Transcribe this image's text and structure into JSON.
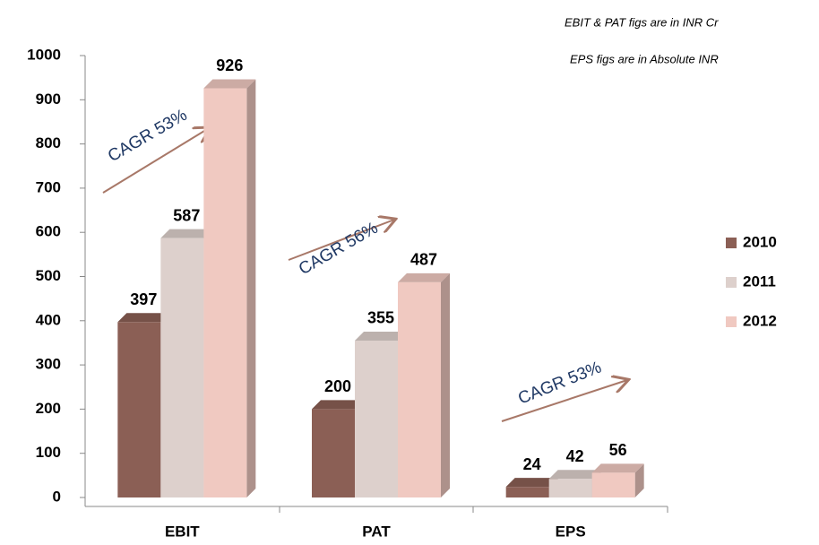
{
  "chart_data": {
    "type": "bar3d",
    "categories": [
      "EBIT",
      "PAT",
      "EPS"
    ],
    "series": [
      {
        "name": "2010",
        "color": "#8b5f55",
        "values": [
          397,
          200,
          24
        ]
      },
      {
        "name": "2011",
        "color": "#ddd0cc",
        "values": [
          587,
          355,
          42
        ]
      },
      {
        "name": "2012",
        "color": "#f0c9c1",
        "values": [
          926,
          487,
          56
        ]
      }
    ],
    "annotations": [
      "EBIT & PAT figs are in INR Cr",
      "EPS figs are in Absolute INR",
      "CAGR 53%",
      "CAGR 56%",
      "CAGR 53%"
    ],
    "ylim": [
      0,
      1000
    ],
    "yticks": [
      0,
      100,
      200,
      300,
      400,
      500,
      600,
      700,
      800,
      900,
      1000
    ],
    "legend": "right"
  }
}
